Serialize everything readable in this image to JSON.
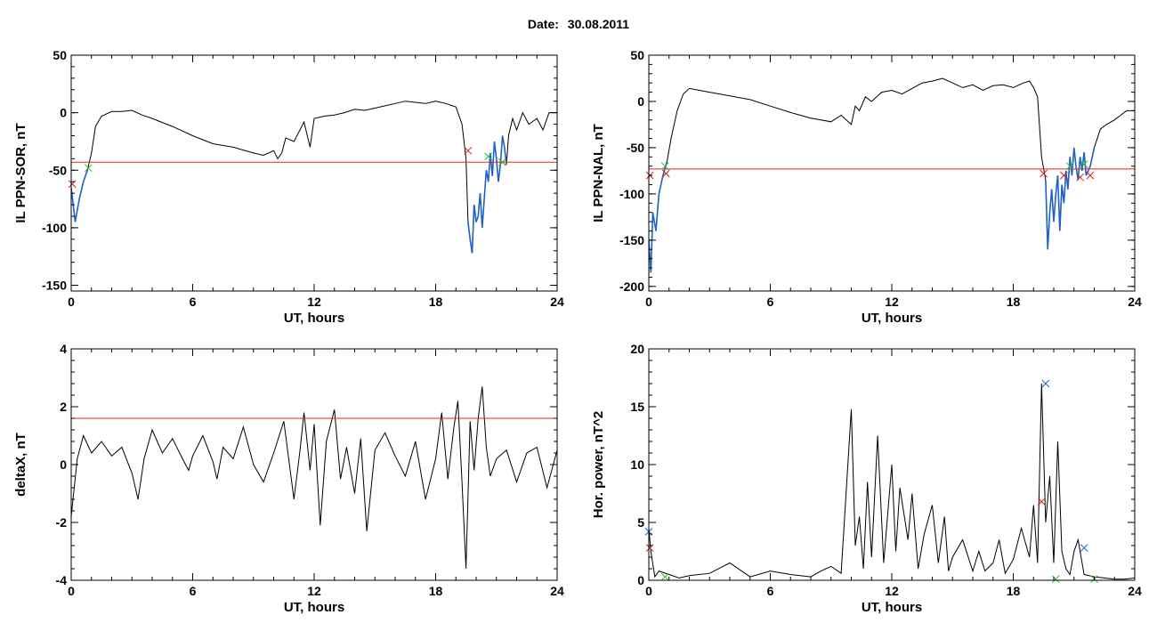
{
  "title": {
    "label": "Date:",
    "value": "30.08.2011"
  },
  "colors": {
    "line": "#000000",
    "threshold": "#e8231f",
    "highlight": "#1e62c8",
    "mark_red": "#d32020",
    "mark_green": "#28c028",
    "mark_blue": "#2060d0"
  },
  "chart_data": [
    {
      "type": "line",
      "xlabel": "UT, hours",
      "ylabel": "IL PPN-SOR, nT",
      "xlim": [
        0,
        24
      ],
      "ylim": [
        -155,
        50
      ],
      "xticks": [
        0,
        6,
        12,
        18,
        24
      ],
      "yticks": [
        -150,
        -100,
        -50,
        0,
        50
      ],
      "threshold": -43,
      "x": [
        0,
        0.2,
        0.4,
        0.6,
        0.8,
        1.0,
        1.2,
        1.5,
        2,
        2.5,
        3,
        3.5,
        4,
        5,
        6,
        7,
        8,
        9,
        9.5,
        10,
        10.2,
        10.4,
        10.6,
        11,
        11.5,
        11.8,
        12,
        12.5,
        13,
        13.5,
        14,
        14.5,
        15,
        15.5,
        16,
        16.5,
        17,
        17.5,
        18,
        18.5,
        19,
        19.3,
        19.5,
        19.6,
        19.7,
        19.8,
        19.9,
        20,
        20.1,
        20.2,
        20.3,
        20.4,
        20.5,
        20.6,
        20.7,
        20.8,
        20.9,
        21,
        21.1,
        21.2,
        21.3,
        21.4,
        21.5,
        21.6,
        21.8,
        22,
        22.3,
        22.6,
        23,
        23.3,
        23.6,
        24
      ],
      "y": [
        -65,
        -95,
        -75,
        -60,
        -50,
        -35,
        -12,
        -3,
        1,
        1,
        2,
        -2,
        -5,
        -12,
        -20,
        -27,
        -30,
        -35,
        -37,
        -33,
        -40,
        -35,
        -22,
        -25,
        -8,
        -30,
        -5,
        -3,
        -2,
        0,
        3,
        2,
        4,
        6,
        8,
        10,
        9,
        8,
        10,
        8,
        5,
        -10,
        -40,
        -95,
        -110,
        -122,
        -80,
        -95,
        -90,
        -70,
        -100,
        -75,
        -50,
        -60,
        -35,
        -55,
        -25,
        -40,
        -60,
        -45,
        -20,
        -30,
        -45,
        -20,
        -5,
        -15,
        0,
        -10,
        -5,
        -15,
        0,
        0
      ],
      "highlight_ranges": [
        [
          0,
          0.9
        ],
        [
          19.6,
          21.5
        ]
      ],
      "marks_red": [
        [
          0.05,
          -62
        ],
        [
          19.6,
          -33
        ],
        [
          21.3,
          -43
        ]
      ],
      "marks_green": [
        [
          0.85,
          -48
        ],
        [
          20.6,
          -38
        ],
        [
          21.3,
          -43
        ]
      ]
    },
    {
      "type": "line",
      "xlabel": "UT, hours",
      "ylabel": "IL PPN-NAL, nT",
      "xlim": [
        0,
        24
      ],
      "ylim": [
        -205,
        50
      ],
      "xticks": [
        0,
        6,
        12,
        18,
        24
      ],
      "yticks": [
        -200,
        -150,
        -100,
        -50,
        0,
        50
      ],
      "threshold": -73,
      "x": [
        0,
        0.1,
        0.2,
        0.35,
        0.5,
        0.7,
        0.9,
        1.1,
        1.4,
        1.7,
        2,
        2.5,
        3,
        3.5,
        4,
        5,
        6,
        7,
        8,
        9,
        9.5,
        10,
        10.2,
        10.4,
        10.7,
        11,
        11.5,
        12,
        12.5,
        13,
        13.5,
        14,
        14.5,
        15,
        15.5,
        16,
        16.5,
        17,
        17.5,
        18,
        18.5,
        18.8,
        19,
        19.2,
        19.4,
        19.6,
        19.7,
        19.8,
        19.9,
        20,
        20.1,
        20.2,
        20.3,
        20.4,
        20.5,
        20.6,
        20.7,
        20.8,
        20.9,
        21,
        21.1,
        21.2,
        21.3,
        21.4,
        21.5,
        21.6,
        21.8,
        22,
        22.3,
        22.6,
        23,
        23.3,
        23.6,
        24
      ],
      "y": [
        -150,
        -185,
        -120,
        -140,
        -100,
        -80,
        -65,
        -40,
        -10,
        8,
        14,
        12,
        10,
        8,
        6,
        2,
        -5,
        -12,
        -18,
        -22,
        -15,
        -25,
        -5,
        -10,
        5,
        0,
        10,
        12,
        8,
        14,
        20,
        22,
        25,
        20,
        15,
        18,
        12,
        17,
        18,
        15,
        20,
        22,
        15,
        5,
        -60,
        -85,
        -160,
        -120,
        -95,
        -130,
        -100,
        -80,
        -140,
        -90,
        -110,
        -75,
        -95,
        -60,
        -80,
        -50,
        -70,
        -85,
        -60,
        -75,
        -55,
        -80,
        -70,
        -50,
        -30,
        -25,
        -20,
        -15,
        -10,
        -10
      ],
      "highlight_ranges": [
        [
          0,
          0.9
        ],
        [
          19.6,
          22.0
        ]
      ],
      "marks_red": [
        [
          0.05,
          -80
        ],
        [
          0.85,
          -78
        ],
        [
          19.5,
          -78
        ],
        [
          20.5,
          -80
        ],
        [
          21.3,
          -82
        ],
        [
          21.8,
          -80
        ]
      ],
      "marks_green": [
        [
          0.8,
          -70
        ],
        [
          20.8,
          -70
        ],
        [
          21.5,
          -68
        ]
      ]
    },
    {
      "type": "line",
      "xlabel": "UT, hours",
      "ylabel": "deltaX, nT",
      "xlim": [
        0,
        24
      ],
      "ylim": [
        -4,
        4
      ],
      "xticks": [
        0,
        6,
        12,
        18,
        24
      ],
      "yticks": [
        -4,
        -2,
        0,
        2,
        4
      ],
      "threshold": 1.6,
      "x": [
        0,
        0.3,
        0.6,
        1,
        1.5,
        2,
        2.5,
        3,
        3.3,
        3.6,
        4,
        4.5,
        5,
        5.5,
        5.8,
        6,
        6.5,
        7,
        7.2,
        7.5,
        8,
        8.5,
        9,
        9.5,
        10,
        10.5,
        11,
        11.3,
        11.5,
        11.8,
        12,
        12.3,
        12.6,
        13,
        13.3,
        13.6,
        14,
        14.3,
        14.6,
        15,
        15.5,
        16,
        16.5,
        17,
        17.5,
        18,
        18.3,
        18.6,
        18.9,
        19.1,
        19.3,
        19.5,
        19.7,
        19.9,
        20.1,
        20.3,
        20.5,
        20.7,
        21,
        21.5,
        22,
        22.5,
        23,
        23.5,
        24
      ],
      "y": [
        -1.8,
        0.2,
        1.0,
        0.4,
        0.8,
        0.3,
        0.6,
        -0.3,
        -1.2,
        0.2,
        1.2,
        0.4,
        0.9,
        0.2,
        -0.2,
        0.3,
        1.0,
        0.1,
        -0.5,
        0.6,
        0.2,
        1.3,
        0.0,
        -0.6,
        0.4,
        1.5,
        -1.2,
        0.5,
        1.8,
        -0.2,
        1.4,
        -2.1,
        0.8,
        1.9,
        -0.5,
        0.6,
        -1.0,
        0.9,
        -2.3,
        0.5,
        1.1,
        0.3,
        -0.4,
        0.8,
        -1.2,
        0.2,
        1.8,
        -0.5,
        1.3,
        2.2,
        -0.6,
        -3.6,
        1.5,
        -0.2,
        1.6,
        2.7,
        0.6,
        -0.4,
        0.2,
        0.5,
        -0.6,
        0.4,
        0.6,
        -0.8,
        0.5
      ],
      "highlight_ranges": [],
      "marks_red": [],
      "marks_green": []
    },
    {
      "type": "line",
      "xlabel": "UT, hours",
      "ylabel": "Hor. power, nT^2",
      "xlim": [
        0,
        24
      ],
      "ylim": [
        0,
        20
      ],
      "xticks": [
        0,
        6,
        12,
        18,
        24
      ],
      "yticks": [
        0,
        5,
        10,
        15,
        20
      ],
      "x": [
        0,
        0.1,
        0.3,
        0.5,
        1,
        1.5,
        2,
        3,
        4,
        5,
        6,
        7,
        8,
        8.5,
        9,
        9.5,
        10,
        10.2,
        10.4,
        10.6,
        10.8,
        11,
        11.3,
        11.6,
        12,
        12.2,
        12.4,
        12.8,
        13,
        13.3,
        13.6,
        14,
        14.3,
        14.6,
        14.8,
        15,
        15.5,
        16,
        16.3,
        16.6,
        17,
        17.3,
        17.6,
        18,
        18.4,
        18.8,
        19,
        19.2,
        19.4,
        19.6,
        19.8,
        20,
        20.2,
        20.4,
        20.6,
        20.8,
        21,
        21.2,
        21.5,
        22,
        22.5,
        23,
        23.5,
        24
      ],
      "y": [
        4.5,
        2.5,
        0.3,
        0.8,
        0.5,
        0.2,
        0.4,
        0.6,
        1.5,
        0.3,
        0.8,
        0.5,
        0.3,
        0.8,
        1.2,
        0.6,
        14.8,
        3.0,
        5.5,
        1.0,
        8.5,
        2.0,
        12.5,
        1.5,
        10.0,
        2.5,
        8.0,
        3.5,
        7.5,
        1.0,
        4.0,
        6.5,
        1.5,
        5.5,
        0.8,
        2.0,
        3.5,
        0.8,
        2.5,
        0.8,
        1.5,
        3.5,
        0.6,
        1.8,
        4.5,
        2.0,
        6.5,
        1.5,
        17.0,
        5.0,
        9.0,
        1.5,
        12.0,
        2.5,
        1.0,
        0.5,
        2.5,
        3.5,
        0.5,
        0.3,
        0.2,
        0.1,
        0.1,
        0.2
      ],
      "highlight_ranges": [],
      "marks_red": [
        [
          0.05,
          2.8
        ],
        [
          19.4,
          6.8
        ]
      ],
      "marks_green": [
        [
          0.8,
          0.3
        ],
        [
          20.1,
          0.1
        ],
        [
          22.0,
          0.1
        ]
      ],
      "marks_blue": [
        [
          0.0,
          4.2
        ],
        [
          19.6,
          17.0
        ],
        [
          21.5,
          2.8
        ]
      ]
    }
  ]
}
